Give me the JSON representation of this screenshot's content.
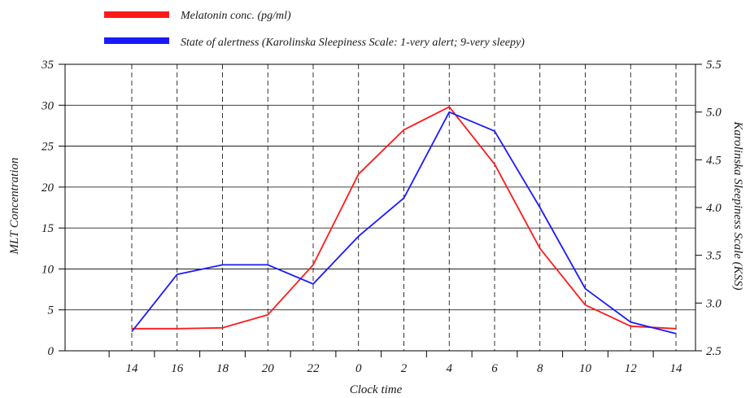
{
  "chart_data": {
    "type": "line",
    "xlabel": "Clock time",
    "ylabel_left": "MLT Concentration",
    "ylabel_right": "Karolinska Sleepiness Scale (KSS)",
    "categories": [
      "14",
      "16",
      "18",
      "20",
      "22",
      "0",
      "2",
      "4",
      "6",
      "8",
      "10",
      "12",
      "14"
    ],
    "ylim_left": [
      0,
      35
    ],
    "yticks_left": [
      "0",
      "5",
      "10",
      "15",
      "20",
      "25",
      "30",
      "35"
    ],
    "ylim_right": [
      2.5,
      5.5
    ],
    "yticks_right": [
      "2.5",
      "3.0",
      "3.5",
      "4.0",
      "4.5",
      "5.0",
      "5.5"
    ],
    "grid": "horizontal solid lines, vertical dashed lines",
    "legend_position": "top",
    "series": [
      {
        "name": "Melatonin conc. (pg/ml)",
        "axis": "left",
        "color": "#ff1a1a",
        "values": [
          2.7,
          2.7,
          2.8,
          4.4,
          10.5,
          21.6,
          27.0,
          29.8,
          22.8,
          12.5,
          5.6,
          3.0,
          2.7
        ]
      },
      {
        "name": "State of alertness (Karolinska Sleepiness Scale: 1-very alert; 9-very sleepy)",
        "axis": "right",
        "color": "#1a1aff",
        "values": [
          2.7,
          3.3,
          3.4,
          3.4,
          3.2,
          3.7,
          4.1,
          5.0,
          4.8,
          4.0,
          3.15,
          2.8,
          2.68
        ]
      }
    ]
  }
}
